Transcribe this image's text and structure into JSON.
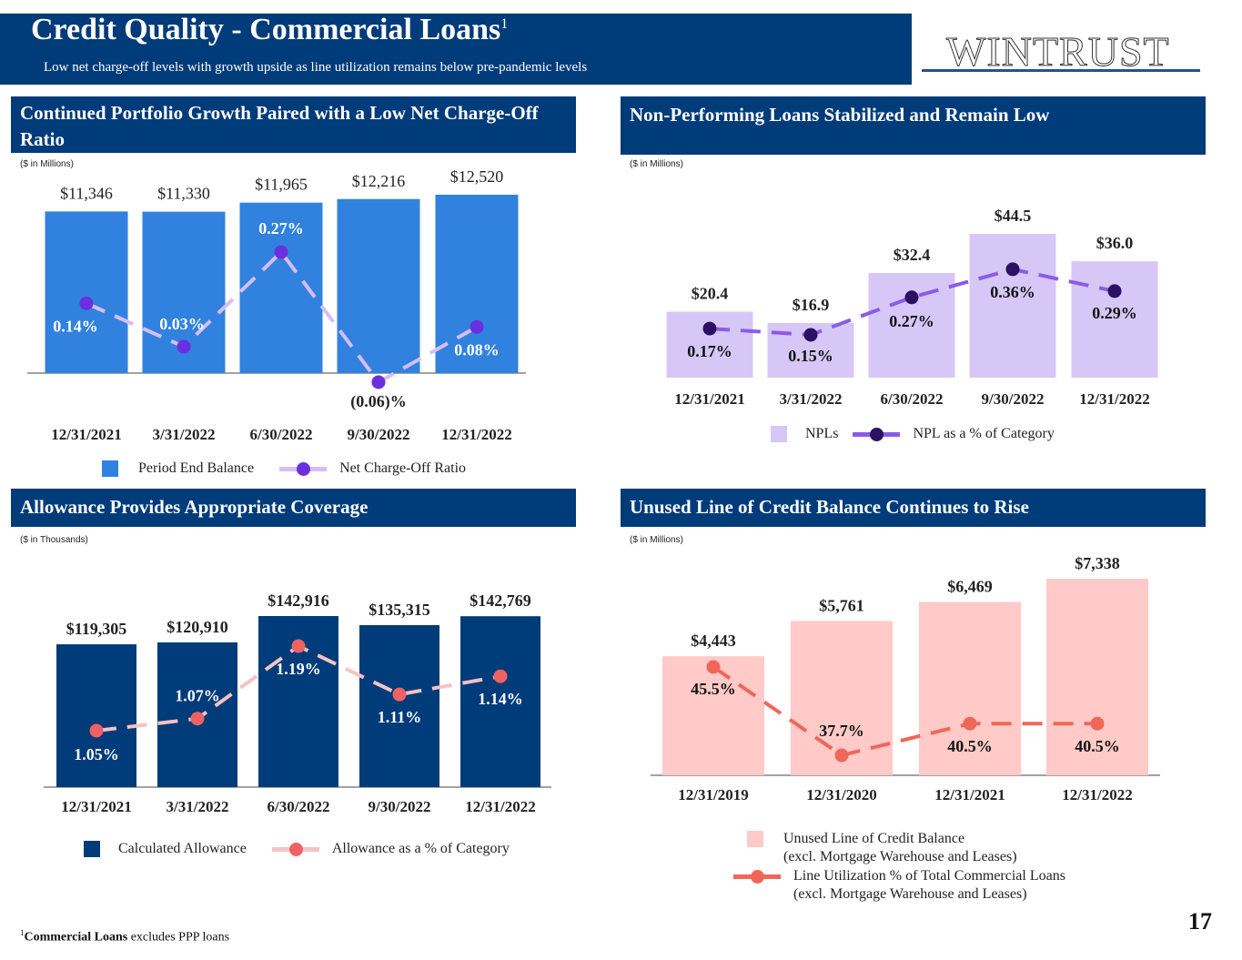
{
  "header": {
    "title": "Credit Quality - Commercial Loans",
    "title_sup": "1",
    "subtitle": "Low net charge-off levels with growth upside as line utilization remains below pre-pandemic levels",
    "logo": "WINTRUST"
  },
  "footnote": {
    "sup": "1",
    "bold": "Commercial Loans",
    "text": " excludes PPP loans"
  },
  "page_number": "17",
  "chart_data": [
    {
      "type": "bar",
      "title": "Continued Portfolio Growth Paired with a Low Net Charge-Off Ratio",
      "unit_note": "($ in Millions)",
      "categories": [
        "12/31/2021",
        "3/31/2022",
        "6/30/2022",
        "9/30/2022",
        "12/31/2022"
      ],
      "series": [
        {
          "name": "Period End Balance",
          "type": "bar",
          "values": [
            11346,
            11330,
            11965,
            12216,
            12520
          ],
          "labels": [
            "$11,346",
            "$11,330",
            "$11,965",
            "$12,216",
            "$12,520"
          ],
          "color": "#3182de"
        },
        {
          "name": "Net Charge-Off Ratio",
          "type": "line",
          "values": [
            0.14,
            0.03,
            0.27,
            -0.06,
            0.08
          ],
          "labels": [
            "0.14%",
            "0.03%",
            "0.27%",
            "(0.06)%",
            "0.08%"
          ],
          "line_color": "#d7bdf6",
          "dot_color": "#6b2fe0"
        }
      ]
    },
    {
      "type": "bar",
      "title": "Non-Performing Loans Stabilized and Remain Low",
      "unit_note": "($ in Millions)",
      "categories": [
        "12/31/2021",
        "3/31/2022",
        "6/30/2022",
        "9/30/2022",
        "12/31/2022"
      ],
      "series": [
        {
          "name": "NPLs",
          "type": "bar",
          "values": [
            20.4,
            16.9,
            32.4,
            44.5,
            36.0
          ],
          "labels": [
            "$20.4",
            "$16.9",
            "$32.4",
            "$44.5",
            "$36.0"
          ],
          "color": "#d6c7f7"
        },
        {
          "name": "NPL as a % of Category",
          "type": "line",
          "values": [
            0.17,
            0.15,
            0.27,
            0.36,
            0.29
          ],
          "labels": [
            "0.17%",
            "0.15%",
            "0.27%",
            "0.36%",
            "0.29%"
          ],
          "line_color": "#8a5ce6",
          "dot_color": "#2b1064"
        }
      ]
    },
    {
      "type": "bar",
      "title": "Allowance Provides Appropriate Coverage",
      "unit_note": "($ in Thousands)",
      "categories": [
        "12/31/2021",
        "3/31/2022",
        "6/30/2022",
        "9/30/2022",
        "12/31/2022"
      ],
      "series": [
        {
          "name": "Calculated Allowance",
          "type": "bar",
          "values": [
            119305,
            120910,
            142916,
            135315,
            142769
          ],
          "labels": [
            "$119,305",
            "$120,910",
            "$142,916",
            "$135,315",
            "$142,769"
          ],
          "color": "#003b7a"
        },
        {
          "name": "Allowance as a % of Category",
          "type": "line",
          "values": [
            1.05,
            1.07,
            1.19,
            1.11,
            1.14
          ],
          "labels": [
            "1.05%",
            "1.07%",
            "1.19%",
            "1.11%",
            "1.14%"
          ],
          "line_color": "#f6c3c3",
          "dot_color": "#f06262"
        }
      ]
    },
    {
      "type": "bar",
      "title": "Unused Line of Credit Balance Continues to Rise",
      "unit_note": "($ in Millions)",
      "categories": [
        "12/31/2019",
        "12/31/2020",
        "12/31/2021",
        "12/31/2022"
      ],
      "series": [
        {
          "name": "Unused Line of Credit Balance",
          "name2": "(excl. Mortgage Warehouse and Leases)",
          "type": "bar",
          "values": [
            4443,
            5761,
            6469,
            7338
          ],
          "labels": [
            "$4,443",
            "$5,761",
            "$6,469",
            "$7,338"
          ],
          "color": "#ffcac7"
        },
        {
          "name": "Line Utilization % of Total Commercial Loans",
          "name2": "(excl. Mortgage Warehouse and Leases)",
          "type": "line",
          "values": [
            45.5,
            37.7,
            40.5,
            40.5
          ],
          "labels": [
            "45.5%",
            "37.7%",
            "40.5%",
            "40.5%"
          ],
          "line_color": "#f0675a",
          "dot_color": "#f0675a"
        }
      ]
    }
  ]
}
